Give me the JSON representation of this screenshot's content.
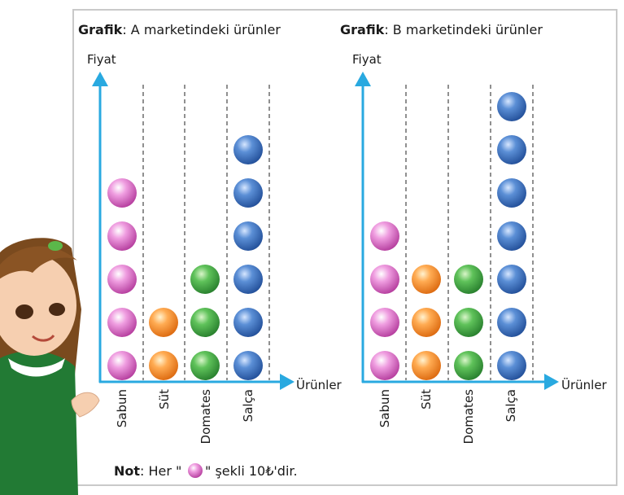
{
  "chart_data": [
    {
      "type": "pictograph",
      "title_bold": "Grafik",
      "title_rest": ": A marketindeki ürünler",
      "ylabel": "Fiyat",
      "xlabel": "Ürünler",
      "categories": [
        "Sabun",
        "Süt",
        "Domates",
        "Salça"
      ],
      "values": [
        5,
        2,
        3,
        6
      ],
      "symbol_value": 10,
      "unit": "₺"
    },
    {
      "type": "pictograph",
      "title_bold": "Grafik",
      "title_rest": ": B marketindeki ürünler",
      "ylabel": "Fiyat",
      "xlabel": "Ürünler",
      "categories": [
        "Sabun",
        "Süt",
        "Domates",
        "Salça"
      ],
      "values": [
        4,
        3,
        3,
        7
      ],
      "symbol_value": 10,
      "unit": "₺"
    }
  ],
  "colors": {
    "axis": "#29a9e0",
    "Sabun": "#d04bb6",
    "Süt": "#f07e1c",
    "Domates": "#3b9a3c",
    "Salça": "#2f62b0",
    "frame": "#c9c9c9",
    "dash": "#555555"
  },
  "note": {
    "bold": "Not",
    "before": ": Her \"",
    "after": "\" şekli 10₺'dir."
  }
}
